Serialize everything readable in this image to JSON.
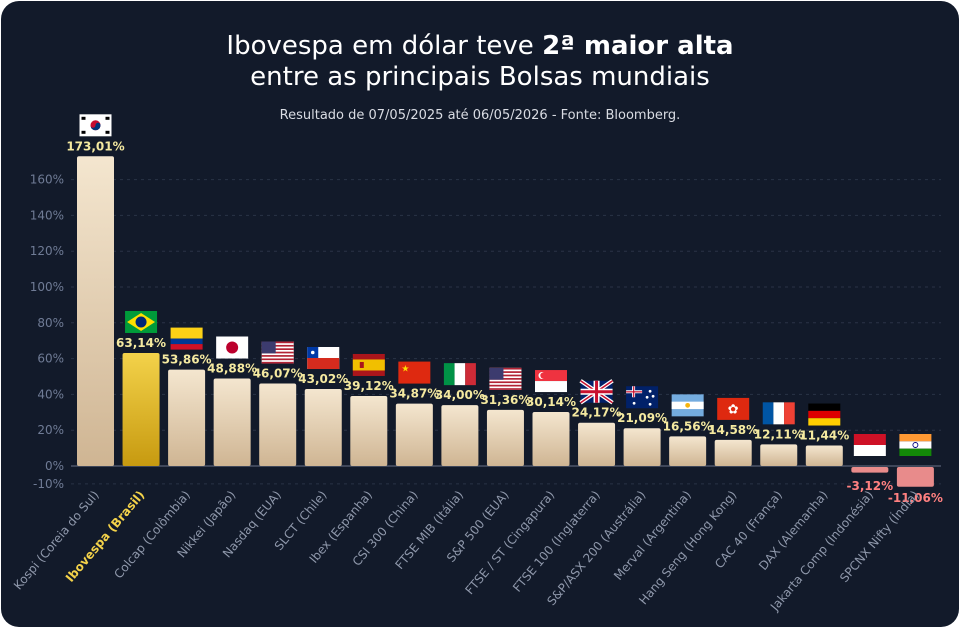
{
  "title": {
    "line1_prefix": "Ibovespa em dólar teve ",
    "line1_bold": "2ª maior alta",
    "line2": "entre as principais Bolsas mundiais"
  },
  "subtitle": "Resultado de 07/05/2025 até 06/05/2026  - Fonte: Bloomberg.",
  "colors": {
    "background": "#121a2a",
    "bar_gradient_top": "#f4e6cf",
    "bar_gradient_bottom": "#cfb593",
    "highlight_top": "#f3d24a",
    "highlight_bottom": "#c79a10",
    "negative_bar": "#e88b8b",
    "positive_label": "#f4e9a0",
    "negative_label": "#ff8080",
    "highlight_axis_label": "#f3d24a",
    "axis_text": "#6f7b95",
    "category_text": "#8f98ab"
  },
  "chart_data": {
    "type": "bar",
    "ylim": [
      -10,
      170
    ],
    "ytick_values": [
      -10,
      0,
      20,
      40,
      60,
      80,
      100,
      120,
      140,
      160
    ],
    "ytick_labels": [
      "-10%",
      "0%",
      "20%",
      "40%",
      "60%",
      "80%",
      "100%",
      "120%",
      "140%",
      "160%"
    ],
    "grid": true,
    "highlight_index": 1,
    "categories": [
      "Kospi (Coreia do Sul)",
      "Ibovespa (Brasil)",
      "Colcap (Colômbia)",
      "Nikkei (Japão)",
      "Nasdaq (EUA)",
      "SLCT (Chile)",
      "Ibex (Espanha)",
      "CSI 300 (China)",
      "FTSE MIB (Itália)",
      "S&P 500 (EUA)",
      "FTSE / ST (Cingapura)",
      "FTSE 100 (Inglaterra)",
      "S&P/ASX 200 (Austrália)",
      "Merval (Argentina)",
      "Hang Seng (Hong Kong)",
      "CAC 40 (França)",
      "DAX (Alemanha)",
      "Jakarta Comp (Indonésia)",
      "SPCNX Nifty (Índia)"
    ],
    "values": [
      173.01,
      63.14,
      53.86,
      48.88,
      46.07,
      43.02,
      39.12,
      34.87,
      34.0,
      31.36,
      30.14,
      24.17,
      21.09,
      16.56,
      14.58,
      12.11,
      11.44,
      -3.12,
      -11.06
    ],
    "value_labels": [
      "173,01%",
      "63,14%",
      "53,86%",
      "48,88%",
      "46,07%",
      "43,02%",
      "39,12%",
      "34,87%",
      "34,00%",
      "31,36%",
      "30,14%",
      "24,17%",
      "21,09%",
      "16,56%",
      "14,58%",
      "12,11%",
      "11,44%",
      "-3,12%",
      "-11,06%"
    ],
    "flags": [
      "korea-flag",
      "brazil-flag",
      "colombia-flag",
      "japan-flag",
      "usa-flag",
      "chile-flag",
      "spain-flag",
      "china-flag",
      "italy-flag",
      "usa-flag",
      "singapore-flag",
      "uk-flag",
      "australia-flag",
      "argentina-flag",
      "hongkong-flag",
      "france-flag",
      "germany-flag",
      "indonesia-flag",
      "india-flag"
    ]
  }
}
